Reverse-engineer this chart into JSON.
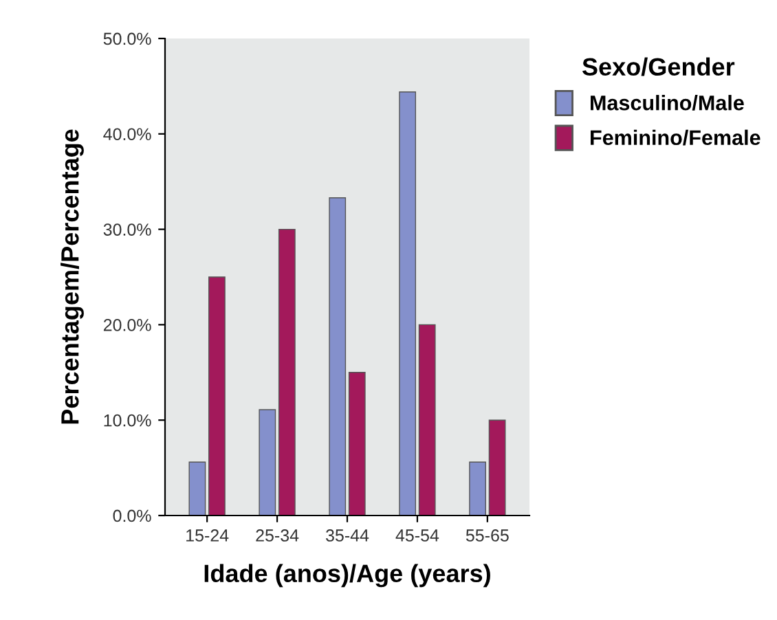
{
  "chart_data": {
    "type": "bar",
    "xlabel": "Idade (anos)/Age (years)",
    "ylabel": "Percentagem/Percentage",
    "legend_title": "Sexo/Gender",
    "categories": [
      "15-24",
      "25-34",
      "35-44",
      "45-54",
      "55-65"
    ],
    "series": [
      {
        "name": "Masculino/Male",
        "color": "#8490cc",
        "values": [
          5.6,
          11.1,
          33.3,
          44.4,
          5.6
        ]
      },
      {
        "name": "Feminino/Female",
        "color": "#a3195b",
        "values": [
          25,
          30,
          15,
          20,
          10
        ]
      }
    ],
    "ylim": [
      0,
      50
    ],
    "yticks": [
      {
        "value": 0,
        "label": "0.0%"
      },
      {
        "value": 10,
        "label": "10.0%"
      },
      {
        "value": 20,
        "label": "20.0%"
      },
      {
        "value": 30,
        "label": "30.0%"
      },
      {
        "value": 40,
        "label": "40.0%"
      },
      {
        "value": 50,
        "label": "50.0%"
      }
    ],
    "grid": false,
    "legend": "top right"
  }
}
